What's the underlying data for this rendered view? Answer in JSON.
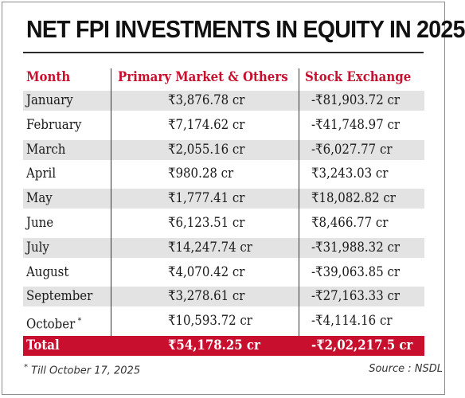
{
  "title": "NET FPI INVESTMENTS IN EQUITY IN 2025",
  "headers": {
    "month": "Month",
    "primary": "Primary Market & Others",
    "stock": "Stock Exchange"
  },
  "rows": [
    {
      "month": "January",
      "primary": "₹3,876.78 cr",
      "stock": "-₹81,903.72 cr"
    },
    {
      "month": "February",
      "primary": "₹7,174.62 cr",
      "stock": "-₹41,748.97 cr"
    },
    {
      "month": "March",
      "primary": "₹2,055.16 cr",
      "stock": "-₹6,027.77 cr"
    },
    {
      "month": "April",
      "primary": "₹980.28 cr",
      "stock": "₹3,243.03 cr"
    },
    {
      "month": "May",
      "primary": "₹1,777.41 cr",
      "stock": "₹18,082.82 cr"
    },
    {
      "month": "June",
      "primary": "₹6,123.51 cr",
      "stock": "₹8,466.77 cr"
    },
    {
      "month": "July",
      "primary": "₹14,247.74 cr",
      "stock": "-₹31,988.32 cr"
    },
    {
      "month": "August",
      "primary": "₹4,070.42 cr",
      "stock": "-₹39,063.85 cr"
    },
    {
      "month": "September",
      "primary": "₹3,278.61 cr",
      "stock": "-₹27,163.33 cr"
    },
    {
      "month": "October",
      "month_mark": "*",
      "primary": "₹10,593.72 cr",
      "stock": "-₹4,114.16 cr"
    }
  ],
  "total": {
    "label": "Total",
    "primary": "₹54,178.25 cr",
    "stock": "-₹2,02,217.5 cr"
  },
  "footnote": {
    "mark": "*",
    "text": " Till October 17, 2025"
  },
  "source": "Source : NSDL",
  "colors": {
    "accent": "#c8102e",
    "shade": "#e3e3e3"
  }
}
